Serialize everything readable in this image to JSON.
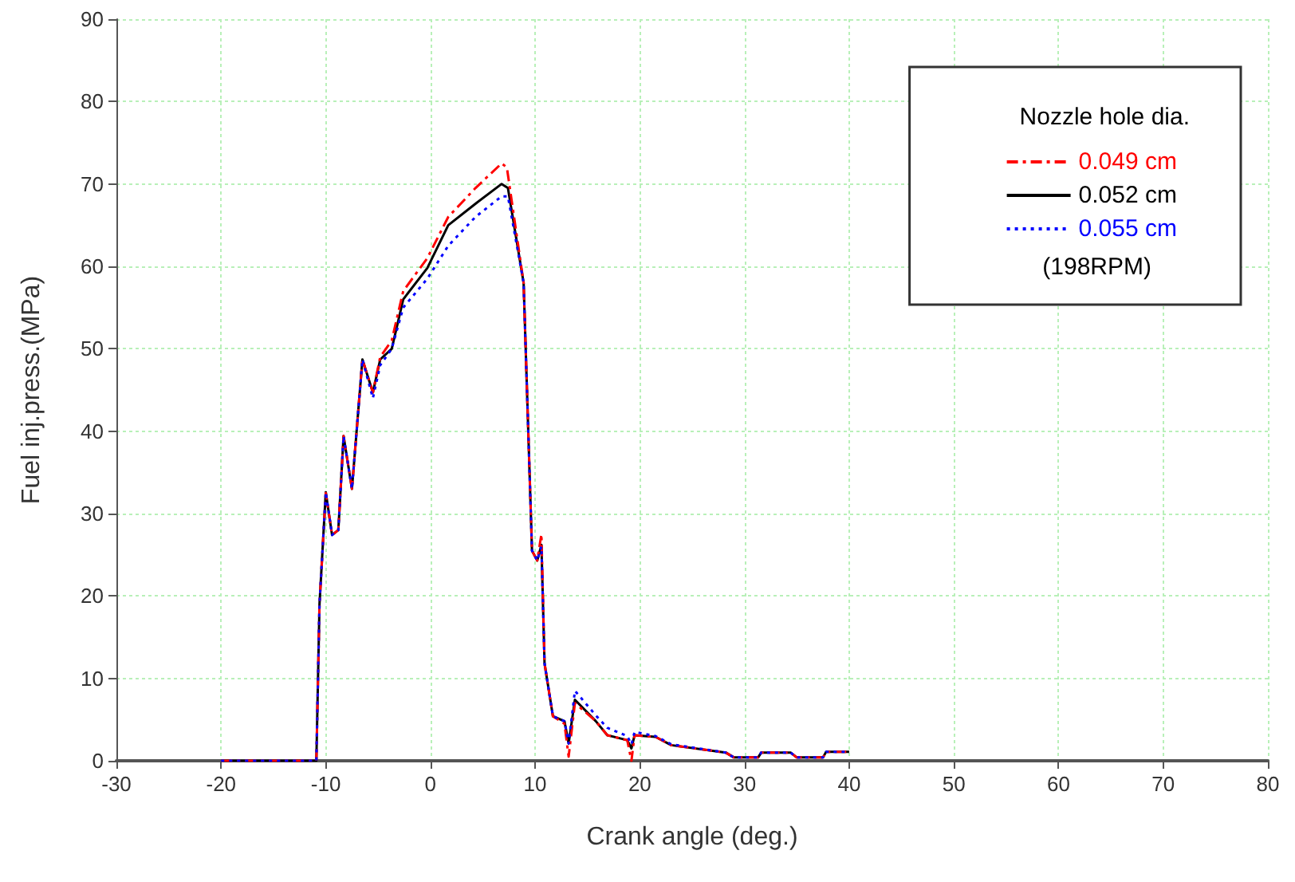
{
  "chart_data": {
    "type": "line",
    "xlabel": "Crank angle (deg.)",
    "ylabel": "Fuel inj.press.(MPa)",
    "legend_title": "Nozzle hole dia.",
    "annotations": [
      "(198RPM)"
    ],
    "xlim": [
      -30,
      80
    ],
    "xticks": [
      -30,
      -20,
      -10,
      0,
      10,
      20,
      30,
      40,
      50,
      60,
      70,
      80
    ],
    "ylim": [
      0,
      90
    ],
    "yticks": [
      0,
      10,
      20,
      30,
      40,
      50,
      60,
      70,
      80,
      90
    ],
    "grid": true,
    "legend": "top right",
    "marker": "none",
    "series": [
      {
        "name": "0.049 cm",
        "color": "#ff0000",
        "line_style": "dashed",
        "x": [
          -20,
          -10.9,
          -10.6,
          -10,
          -9.4,
          -8.8,
          -8.3,
          -7.5,
          -6.5,
          -5.5,
          -4.8,
          -3.7,
          -2.6,
          -0.3,
          1.7,
          4.3,
          6.8,
          7.3,
          8.9,
          9.7,
          10.2,
          10.6,
          10.9,
          11.7,
          12.8,
          13.2,
          13.8,
          15.8,
          16.9,
          18.8,
          19.2,
          19.5,
          21.5,
          23,
          28.2,
          29,
          31.3,
          31.6,
          34.4,
          35,
          37.5,
          37.8,
          40
        ],
        "values": [
          0,
          0,
          19,
          32.5,
          27.4,
          28,
          39.4,
          33,
          48.7,
          44.7,
          49,
          51,
          57,
          61,
          66,
          69.5,
          72.5,
          72,
          58,
          25.5,
          24.3,
          27.5,
          11.8,
          5.4,
          4.5,
          0.5,
          7,
          4.8,
          3.1,
          2.5,
          0,
          3.1,
          2.9,
          1.9,
          1,
          0.4,
          0.4,
          1,
          1,
          0.4,
          0.4,
          1.1,
          1.1
        ]
      },
      {
        "name": "0.052 cm",
        "color": "#000000",
        "line_style": "solid",
        "x": [
          -20,
          -10.9,
          -10.6,
          -10,
          -9.4,
          -8.8,
          -8.3,
          -7.5,
          -6.5,
          -5.5,
          -4.8,
          -3.7,
          -2.6,
          -0.3,
          1.7,
          4.3,
          6.8,
          7.4,
          8.9,
          9.7,
          10.2,
          10.6,
          10.9,
          11.7,
          12.8,
          13.2,
          13.8,
          15.8,
          16.9,
          18.8,
          19.2,
          19.5,
          21.5,
          23,
          28.2,
          29,
          31.3,
          31.6,
          34.4,
          35,
          37.5,
          37.8,
          40
        ],
        "values": [
          0,
          0,
          19,
          32.6,
          27.4,
          28,
          39.4,
          33,
          48.7,
          44.7,
          48.7,
          50,
          56,
          59.8,
          65,
          67.6,
          70,
          69.5,
          58,
          25.5,
          24.3,
          26.2,
          11.8,
          5.4,
          4.8,
          2.1,
          7.4,
          4.8,
          3.1,
          2.5,
          1.5,
          3.1,
          2.9,
          1.9,
          1,
          0.4,
          0.4,
          1,
          1,
          0.4,
          0.4,
          1.1,
          1.1
        ]
      },
      {
        "name": "0.055 cm",
        "color": "#0000ff",
        "line_style": "dotted",
        "x": [
          -20,
          -10.9,
          -10.6,
          -10,
          -9.4,
          -8.8,
          -8.3,
          -7.5,
          -6.5,
          -5.5,
          -4.8,
          -3.7,
          -2.6,
          -0.3,
          1.7,
          4.3,
          6.8,
          7.4,
          8.9,
          9.7,
          10.2,
          10.6,
          10.9,
          11.7,
          12.8,
          13.2,
          13.8,
          15.8,
          16.9,
          18.8,
          19.2,
          19.5,
          21.5,
          23,
          28.2,
          29,
          31.3,
          31.6,
          34.4,
          35,
          37.5,
          37.8,
          40
        ],
        "values": [
          0,
          0,
          19,
          32.6,
          27.4,
          28,
          39.4,
          33,
          48.7,
          44,
          48,
          50,
          55,
          58.5,
          62.5,
          66,
          68.5,
          68.5,
          58,
          25.5,
          24.3,
          26,
          11.8,
          5.4,
          4.8,
          2.1,
          8.5,
          5.5,
          4,
          3,
          2,
          3.5,
          3,
          2,
          1,
          0.4,
          0.4,
          1,
          1,
          0.4,
          0.4,
          1.1,
          1.1
        ]
      }
    ]
  }
}
